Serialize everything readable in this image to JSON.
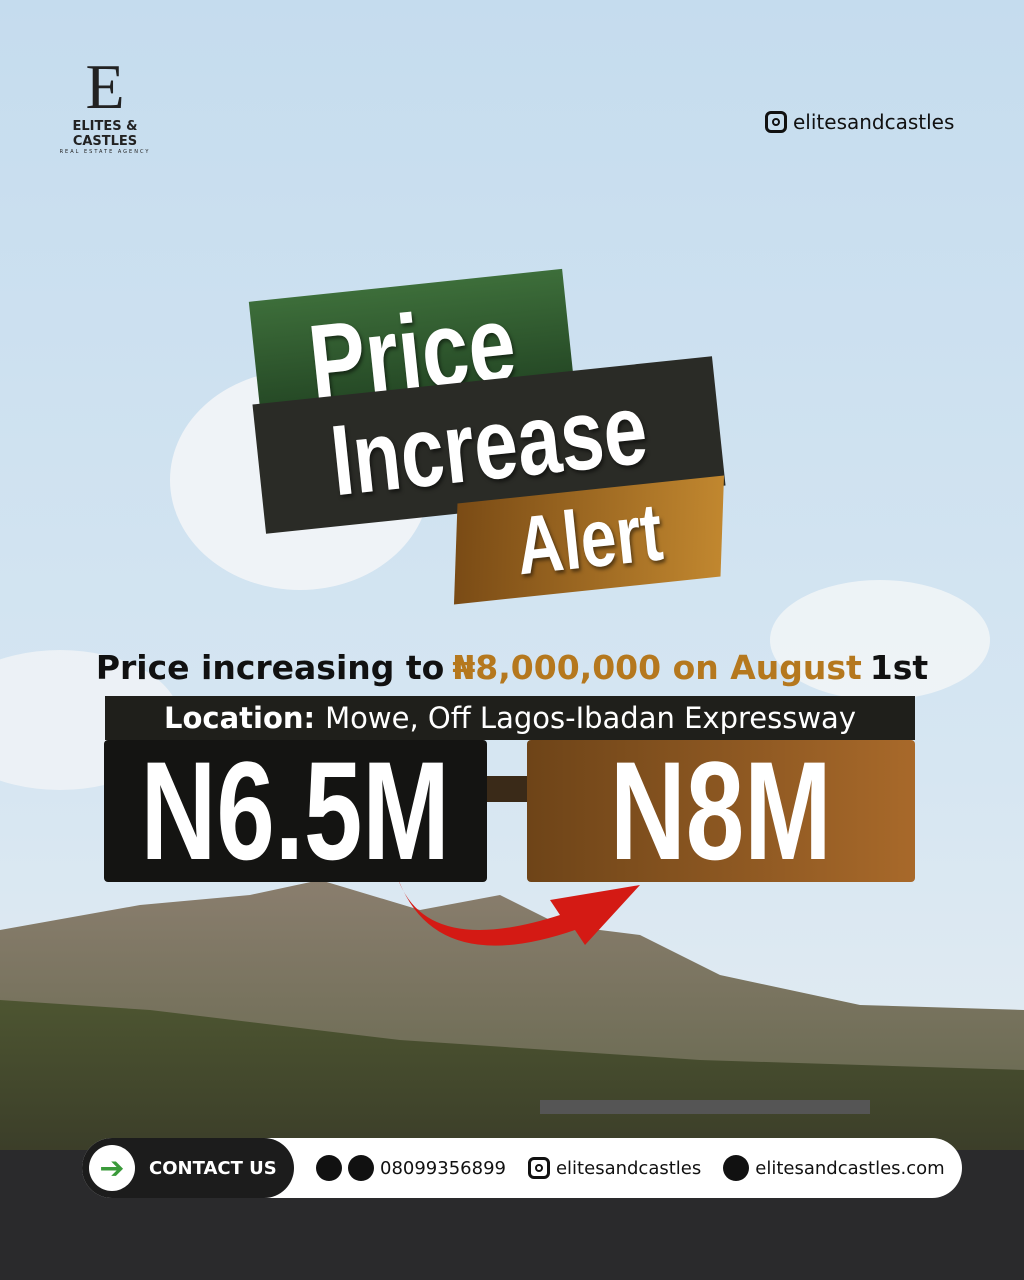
{
  "brand": {
    "name": "ELITES & CASTLES",
    "tagline": "REAL ESTATE AGENCY"
  },
  "header": {
    "instagram": "elitesandcastles"
  },
  "headline": {
    "line1": "Price",
    "line2": "Increase",
    "line3": "Alert"
  },
  "announcement": {
    "lead": "Price increasing to",
    "price": "₦8,000,000 on August",
    "date": "1st"
  },
  "location": {
    "label": "Location:",
    "text": "Mowe, Off Lagos-Ibadan Expressway"
  },
  "prices": {
    "old": "N6.5M",
    "new": "N8M"
  },
  "footer": {
    "cta": "CONTACT US",
    "phone": "08099356899",
    "instagram": "elitesandcastles",
    "website": "elitesandcastles.com"
  }
}
